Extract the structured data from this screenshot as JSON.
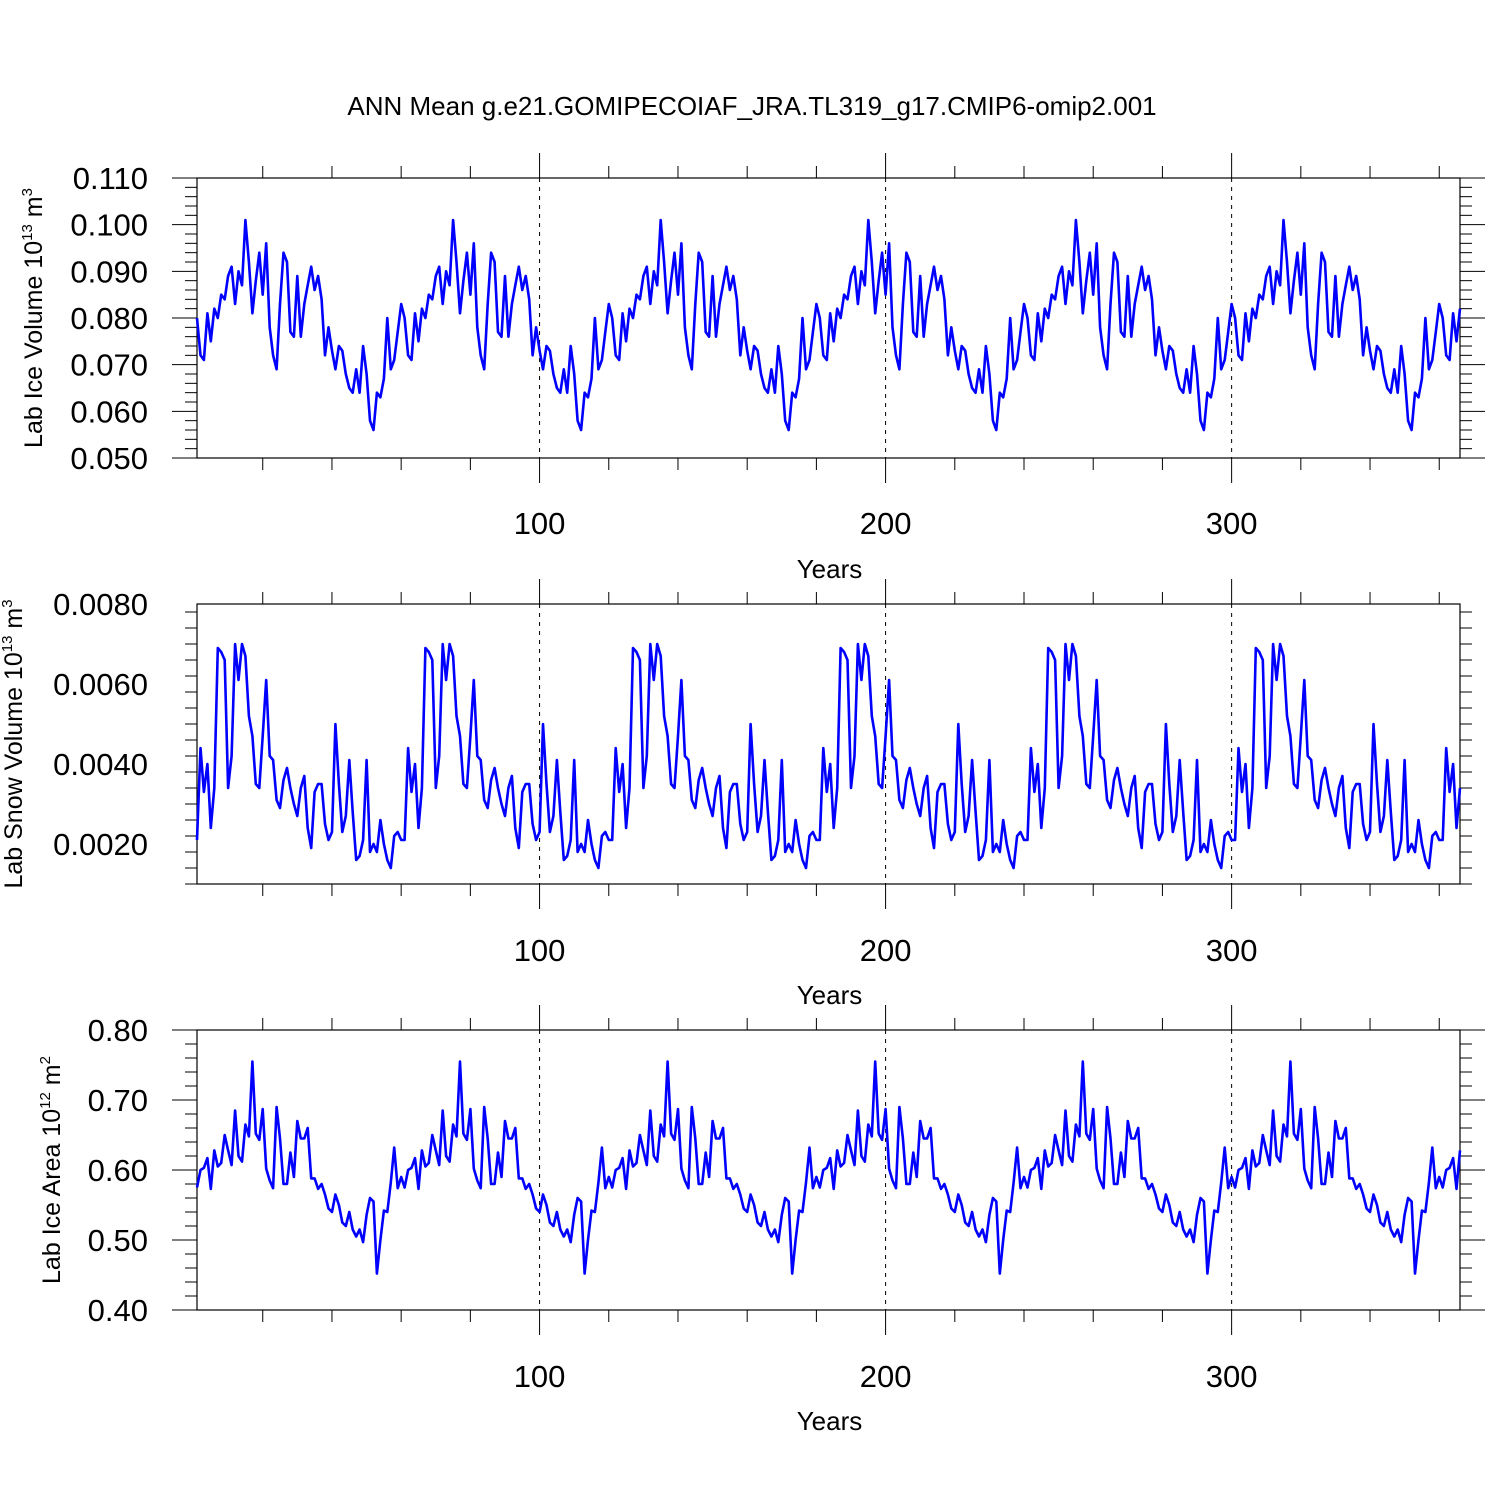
{
  "title": "ANN Mean g.e21.GOMIPECOIAF_JRA.TL319_g17.CMIP6-omip2.001",
  "colors": {
    "series": "#0000ff",
    "axis": "#000000",
    "ref_lines": "#000000"
  },
  "chart_data": [
    {
      "type": "line",
      "name": "ice-volume",
      "ylabel_main": "Lab Ice Volume 10",
      "ylabel_sup": "13",
      "ylabel_unit": " m",
      "ylabel_unit_sup": "3",
      "xlabel": "Years",
      "xlim": [
        1,
        366
      ],
      "ylim": [
        0.05,
        0.11
      ],
      "xticks": [
        100,
        200,
        300
      ],
      "xtick_labels": [
        "100",
        "200",
        "300"
      ],
      "yticks": [
        0.05,
        0.06,
        0.07,
        0.08,
        0.09,
        0.1,
        0.11
      ],
      "ytick_labels": [
        "0.050",
        "0.060",
        "0.070",
        "0.080",
        "0.090",
        "0.100",
        "0.110"
      ],
      "ref_lines_x": [
        100,
        200,
        300
      ],
      "x_start": 1,
      "cycle_start_year": 61,
      "cycle": [
        0.08,
        0.072,
        0.071,
        0.081,
        0.075,
        0.082,
        0.08,
        0.085,
        0.084,
        0.089,
        0.091,
        0.083,
        0.09,
        0.087,
        0.101,
        0.092,
        0.081,
        0.088,
        0.094,
        0.085,
        0.096,
        0.078,
        0.072,
        0.069,
        0.083,
        0.094,
        0.092,
        0.077,
        0.076,
        0.089,
        0.076,
        0.083,
        0.087,
        0.091,
        0.086,
        0.089,
        0.084,
        0.072,
        0.078,
        0.073,
        0.069,
        0.074,
        0.073,
        0.068,
        0.065,
        0.064,
        0.069,
        0.064,
        0.074,
        0.068,
        0.058,
        0.056,
        0.064,
        0.063,
        0.067,
        0.08,
        0.069,
        0.071,
        0.077,
        0.083
      ]
    },
    {
      "type": "line",
      "name": "snow-volume",
      "ylabel_main": "Lab Snow Volume 10",
      "ylabel_sup": "13",
      "ylabel_unit": " m",
      "ylabel_unit_sup": "3",
      "xlabel": "Years",
      "xlim": [
        1,
        366
      ],
      "ylim": [
        0.001,
        0.008
      ],
      "xticks": [
        100,
        200,
        300
      ],
      "xtick_labels": [
        "100",
        "200",
        "300"
      ],
      "yticks": [
        0.002,
        0.004,
        0.006,
        0.008
      ],
      "ytick_labels": [
        "0.0020",
        "0.0040",
        "0.0060",
        "0.0080"
      ],
      "ref_lines_x": [
        100,
        200,
        300
      ],
      "x_start": 1,
      "cycle_start_year": 61,
      "cycle": [
        0.0021,
        0.0044,
        0.0033,
        0.004,
        0.0024,
        0.0034,
        0.0069,
        0.0068,
        0.0066,
        0.0034,
        0.0042,
        0.007,
        0.0061,
        0.007,
        0.0067,
        0.0052,
        0.0047,
        0.0035,
        0.0034,
        0.0047,
        0.0061,
        0.0042,
        0.0041,
        0.0031,
        0.0029,
        0.0036,
        0.0039,
        0.0034,
        0.003,
        0.0027,
        0.0034,
        0.0037,
        0.0024,
        0.0019,
        0.0033,
        0.0035,
        0.0035,
        0.0025,
        0.0021,
        0.0023,
        0.005,
        0.0035,
        0.0023,
        0.0027,
        0.0041,
        0.0028,
        0.0016,
        0.0017,
        0.0021,
        0.0041,
        0.0018,
        0.002,
        0.0018,
        0.0026,
        0.002,
        0.0016,
        0.0014,
        0.0022,
        0.0023,
        0.0021
      ]
    },
    {
      "type": "line",
      "name": "ice-area",
      "ylabel_main": "Lab Ice Area 10",
      "ylabel_sup": "12",
      "ylabel_unit": " m",
      "ylabel_unit_sup": "2",
      "xlabel": "Years",
      "xlim": [
        1,
        366
      ],
      "ylim": [
        0.4,
        0.8
      ],
      "xticks": [
        100,
        200,
        300
      ],
      "xtick_labels": [
        "100",
        "200",
        "300"
      ],
      "yticks": [
        0.4,
        0.5,
        0.6,
        0.7,
        0.8
      ],
      "ytick_labels": [
        "0.40",
        "0.50",
        "0.60",
        "0.70",
        "0.80"
      ],
      "ref_lines_x": [
        100,
        200,
        300
      ],
      "x_start": 1,
      "cycle_start_year": 61,
      "cycle": [
        0.575,
        0.6,
        0.603,
        0.617,
        0.573,
        0.628,
        0.605,
        0.61,
        0.65,
        0.628,
        0.607,
        0.685,
        0.62,
        0.612,
        0.665,
        0.648,
        0.755,
        0.652,
        0.643,
        0.687,
        0.602,
        0.585,
        0.574,
        0.69,
        0.645,
        0.58,
        0.58,
        0.625,
        0.59,
        0.67,
        0.645,
        0.645,
        0.66,
        0.588,
        0.588,
        0.573,
        0.58,
        0.565,
        0.545,
        0.54,
        0.565,
        0.55,
        0.525,
        0.52,
        0.54,
        0.515,
        0.505,
        0.515,
        0.497,
        0.536,
        0.56,
        0.555,
        0.452,
        0.5,
        0.542,
        0.54,
        0.582,
        0.632,
        0.574,
        0.59
      ]
    }
  ]
}
